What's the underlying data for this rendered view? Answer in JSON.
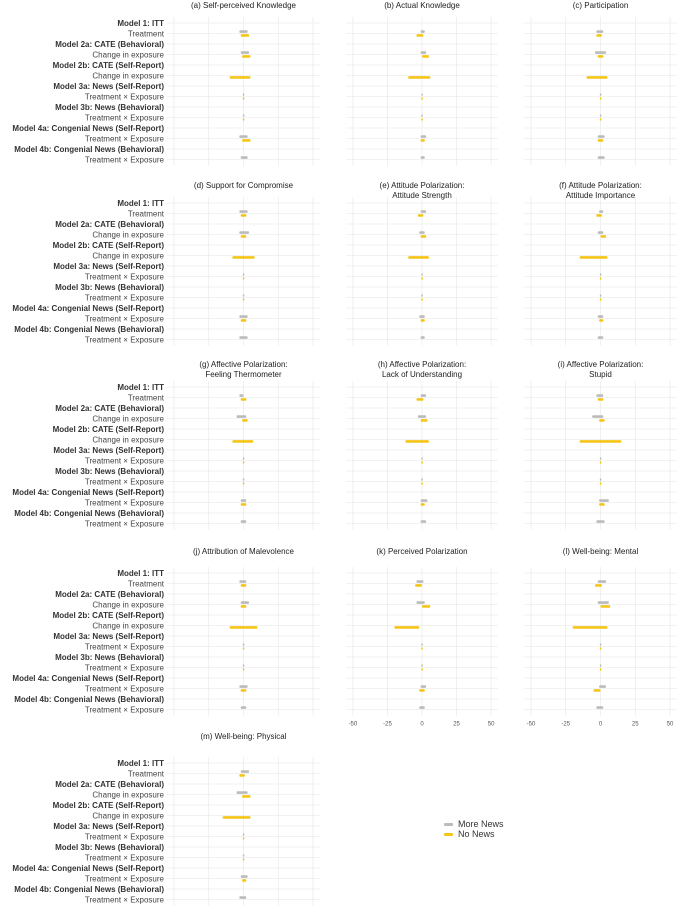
{
  "colors": {
    "more_news": "#bbbbbb",
    "no_news": "#f5c518",
    "grid": "#e6e6e6",
    "text": "#444444"
  },
  "chart_data": {
    "type": "forest",
    "description": "Coefficient estimates with confidence intervals by model and exposure group",
    "x_axis": {
      "range": [
        -55,
        55
      ],
      "ticks": [
        -50,
        -25,
        0,
        25,
        50
      ]
    },
    "y_rows": [
      {
        "label": "Model 1: ITT",
        "header": true
      },
      {
        "label": "Treatment",
        "header": false
      },
      {
        "label": "Model 2a: CATE (Behavioral)",
        "header": true
      },
      {
        "label": "Change in exposure",
        "header": false
      },
      {
        "label": "Model 2b: CATE (Self-Report)",
        "header": true
      },
      {
        "label": "Change in exposure",
        "header": false
      },
      {
        "label": "Model 3a: News (Self-Report)",
        "header": true
      },
      {
        "label": "Treatment × Exposure",
        "header": false
      },
      {
        "label": "Model 3b: News (Behavioral)",
        "header": true
      },
      {
        "label": "Treatment × Exposure",
        "header": false
      },
      {
        "label": "Model 4a: Congenial News (Self-Report)",
        "header": true
      },
      {
        "label": "Treatment × Exposure",
        "header": false
      },
      {
        "label": "Model 4b: Congenial News (Behavioral)",
        "header": true
      },
      {
        "label": "Treatment × Exposure",
        "header": false
      }
    ],
    "series": [
      {
        "name": "More News",
        "color": "#bbbbbb"
      },
      {
        "name": "No News",
        "color": "#f5c518"
      }
    ],
    "legend": {
      "position": "bottom-right",
      "entries": [
        "More News",
        "No News"
      ]
    },
    "panels": [
      {
        "title": [
          "(a) Self-perceived Knowledge"
        ],
        "estimates": {
          "1": {
            "more": [
              -3,
              3
            ],
            "no": [
              -2,
              4
            ]
          },
          "3": {
            "more": [
              -2,
              4
            ],
            "no": [
              -1,
              5
            ]
          },
          "5": {
            "no": [
              -10,
              5
            ]
          },
          "7": {
            "more": [
              -0.5,
              0.5
            ],
            "no": [
              -0.5,
              0.5
            ]
          },
          "9": {
            "more": [
              -0.5,
              0.5
            ],
            "no": [
              -0.5,
              0.5
            ]
          },
          "11": {
            "more": [
              -3,
              3
            ],
            "no": [
              -1,
              5
            ]
          },
          "13": {
            "more": [
              -2,
              3
            ]
          }
        }
      },
      {
        "title": [
          "(b) Actual Knowledge"
        ],
        "estimates": {
          "1": {
            "more": [
              -1,
              2
            ],
            "no": [
              -4,
              1
            ]
          },
          "3": {
            "more": [
              -1,
              3
            ],
            "no": [
              0,
              5
            ]
          },
          "5": {
            "no": [
              -10,
              6
            ]
          },
          "7": {
            "more": [
              -0.5,
              0.5
            ],
            "no": [
              -0.5,
              0.5
            ]
          },
          "9": {
            "more": [
              -0.5,
              0.5
            ],
            "no": [
              -0.5,
              0.5
            ]
          },
          "11": {
            "more": [
              -1,
              3
            ],
            "no": [
              -1,
              2
            ]
          },
          "13": {
            "more": [
              -1,
              2
            ]
          }
        }
      },
      {
        "title": [
          "(c) Participation"
        ],
        "estimates": {
          "1": {
            "more": [
              -3,
              2
            ],
            "no": [
              -3,
              1
            ]
          },
          "3": {
            "more": [
              -4,
              4
            ],
            "no": [
              -2,
              2
            ]
          },
          "5": {
            "no": [
              -10,
              5
            ]
          },
          "7": {
            "more": [
              -0.5,
              0.5
            ],
            "no": [
              -0.5,
              0.5
            ]
          },
          "9": {
            "more": [
              -0.5,
              0.5
            ],
            "no": [
              -0.5,
              0.5
            ]
          },
          "11": {
            "more": [
              -2,
              3
            ],
            "no": [
              -2,
              2
            ]
          },
          "13": {
            "more": [
              -2,
              3
            ]
          }
        }
      },
      {
        "title": [
          "(d) Support for Compromise"
        ],
        "estimates": {
          "1": {
            "more": [
              -3,
              3
            ],
            "no": [
              -2,
              2
            ]
          },
          "3": {
            "more": [
              -3,
              4
            ],
            "no": [
              -2,
              2
            ]
          },
          "5": {
            "no": [
              -8,
              8
            ]
          },
          "7": {
            "more": [
              -0.5,
              0.5
            ],
            "no": [
              -0.5,
              0.5
            ]
          },
          "9": {
            "more": [
              -0.5,
              0.5
            ],
            "no": [
              -0.5,
              0.5
            ]
          },
          "11": {
            "more": [
              -3,
              3
            ],
            "no": [
              -2,
              2
            ]
          },
          "13": {
            "more": [
              -3,
              3
            ]
          }
        }
      },
      {
        "title": [
          "(e) Attitude Polarization:",
          "Attitude Strength"
        ],
        "estimates": {
          "1": {
            "more": [
              -1,
              3
            ],
            "no": [
              -3,
              1
            ]
          },
          "3": {
            "more": [
              -2,
              2
            ],
            "no": [
              -1,
              3
            ]
          },
          "5": {
            "no": [
              -10,
              5
            ]
          },
          "7": {
            "more": [
              -0.5,
              0.5
            ],
            "no": [
              -0.5,
              0.5
            ]
          },
          "9": {
            "more": [
              -0.5,
              0.5
            ],
            "no": [
              -0.5,
              0.5
            ]
          },
          "11": {
            "more": [
              -2,
              2
            ],
            "no": [
              -1,
              2
            ]
          },
          "13": {
            "more": [
              -1,
              2
            ]
          }
        }
      },
      {
        "title": [
          "(f) Attitude Polarization:",
          "Attitude Importance"
        ],
        "estimates": {
          "1": {
            "more": [
              -1,
              2
            ],
            "no": [
              -3,
              1
            ]
          },
          "3": {
            "more": [
              -2,
              2
            ],
            "no": [
              0,
              4
            ]
          },
          "5": {
            "no": [
              -15,
              5
            ]
          },
          "7": {
            "more": [
              -0.5,
              0.5
            ],
            "no": [
              -0.5,
              0.5
            ]
          },
          "9": {
            "more": [
              -0.5,
              0.5
            ],
            "no": [
              -0.5,
              0.5
            ]
          },
          "11": {
            "more": [
              -2,
              2
            ],
            "no": [
              -1,
              2
            ]
          },
          "13": {
            "more": [
              -2,
              2
            ]
          }
        }
      },
      {
        "title": [
          "(g) Affective Polarization:",
          "Feeling Thermometer"
        ],
        "estimates": {
          "1": {
            "more": [
              -3,
              0
            ],
            "no": [
              -2,
              2
            ]
          },
          "3": {
            "more": [
              -5,
              2
            ],
            "no": [
              -1,
              3
            ]
          },
          "5": {
            "no": [
              -8,
              7
            ]
          },
          "7": {
            "more": [
              -0.5,
              0.5
            ],
            "no": [
              -0.5,
              0.5
            ]
          },
          "9": {
            "more": [
              -0.5,
              0.5
            ],
            "no": [
              -0.5,
              0.5
            ]
          },
          "11": {
            "more": [
              -2,
              2
            ],
            "no": [
              -2,
              2
            ]
          },
          "13": {
            "more": [
              -2,
              2
            ]
          }
        }
      },
      {
        "title": [
          "(h) Affective Polarization:",
          "Lack of Understanding"
        ],
        "estimates": {
          "1": {
            "more": [
              -1,
              3
            ],
            "no": [
              -4,
              1
            ]
          },
          "3": {
            "more": [
              -3,
              3
            ],
            "no": [
              -1,
              4
            ]
          },
          "5": {
            "no": [
              -12,
              5
            ]
          },
          "7": {
            "more": [
              -0.5,
              0.5
            ],
            "no": [
              -0.5,
              0.5
            ]
          },
          "9": {
            "more": [
              -0.5,
              0.5
            ],
            "no": [
              -0.5,
              0.5
            ]
          },
          "11": {
            "more": [
              -1,
              4
            ],
            "no": [
              -1,
              2
            ]
          },
          "13": {
            "more": [
              -1,
              3
            ]
          }
        }
      },
      {
        "title": [
          "(i) Affective Polarization:",
          "Stupid"
        ],
        "estimates": {
          "1": {
            "more": [
              -3,
              2
            ],
            "no": [
              -2,
              2
            ]
          },
          "3": {
            "more": [
              -6,
              2
            ],
            "no": [
              -1,
              3
            ]
          },
          "5": {
            "no": [
              -15,
              15
            ]
          },
          "7": {
            "more": [
              -0.5,
              0.5
            ],
            "no": [
              -0.5,
              0.5
            ]
          },
          "9": {
            "more": [
              -0.5,
              0.5
            ],
            "no": [
              -0.5,
              0.5
            ]
          },
          "11": {
            "more": [
              -1,
              6
            ],
            "no": [
              -1,
              3
            ]
          },
          "13": {
            "more": [
              -3,
              3
            ]
          }
        }
      },
      {
        "title": [
          "(j) Attribution of Malevolence"
        ],
        "estimates": {
          "1": {
            "more": [
              -3,
              2
            ],
            "no": [
              -2,
              2
            ]
          },
          "3": {
            "more": [
              -2,
              4
            ],
            "no": [
              -2,
              2
            ]
          },
          "5": {
            "no": [
              -10,
              10
            ]
          },
          "7": {
            "more": [
              -0.5,
              0.5
            ],
            "no": [
              -0.5,
              0.5
            ]
          },
          "9": {
            "more": [
              -0.5,
              0.5
            ],
            "no": [
              -0.5,
              0.5
            ]
          },
          "11": {
            "more": [
              -3,
              3
            ],
            "no": [
              -2,
              2
            ]
          },
          "13": {
            "more": [
              -2,
              2
            ]
          }
        }
      },
      {
        "title": [
          "(k) Perceived Polarization"
        ],
        "estimates": {
          "1": {
            "more": [
              -4,
              1
            ],
            "no": [
              -5,
              0
            ]
          },
          "3": {
            "more": [
              -4,
              2
            ],
            "no": [
              0,
              6
            ]
          },
          "5": {
            "no": [
              -20,
              -2
            ]
          },
          "7": {
            "more": [
              -0.5,
              0.5
            ],
            "no": [
              -0.5,
              0.5
            ]
          },
          "9": {
            "more": [
              -0.5,
              0.5
            ],
            "no": [
              -0.5,
              0.5
            ]
          },
          "11": {
            "more": [
              -1,
              3
            ],
            "no": [
              -2,
              2
            ]
          },
          "13": {
            "more": [
              -2,
              2
            ]
          }
        }
      },
      {
        "title": [
          "(l) Well-being: Mental"
        ],
        "estimates": {
          "1": {
            "more": [
              -2,
              4
            ],
            "no": [
              -4,
              1
            ]
          },
          "3": {
            "more": [
              -2,
              6
            ],
            "no": [
              0,
              7
            ]
          },
          "5": {
            "no": [
              -20,
              5
            ]
          },
          "7": {
            "more": [
              -0.5,
              0.5
            ],
            "no": [
              -0.5,
              0.5
            ]
          },
          "9": {
            "more": [
              -0.5,
              0.5
            ],
            "no": [
              -0.5,
              0.5
            ]
          },
          "11": {
            "more": [
              -1,
              4
            ],
            "no": [
              -5,
              0
            ]
          },
          "13": {
            "more": [
              -3,
              2
            ]
          }
        }
      },
      {
        "title": [
          "(m) Well-being: Physical"
        ],
        "estimates": {
          "1": {
            "more": [
              -2,
              4
            ],
            "no": [
              -3,
              1
            ]
          },
          "3": {
            "more": [
              -5,
              3
            ],
            "no": [
              -1,
              5
            ]
          },
          "5": {
            "no": [
              -15,
              5
            ]
          },
          "7": {
            "more": [
              -0.5,
              0.5
            ],
            "no": [
              -0.5,
              0.5
            ]
          },
          "9": {
            "more": [
              -0.5,
              0.5
            ],
            "no": [
              -0.5,
              0.5
            ]
          },
          "11": {
            "more": [
              -2,
              3
            ],
            "no": [
              -1,
              2
            ]
          },
          "13": {
            "more": [
              -3,
              2
            ]
          }
        }
      }
    ]
  }
}
